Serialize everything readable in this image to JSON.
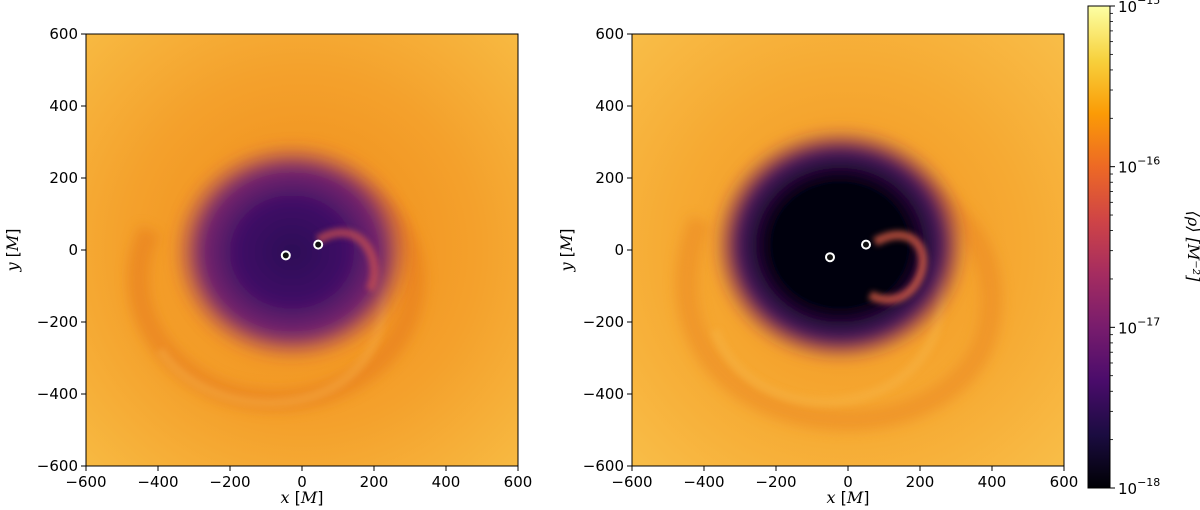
{
  "chart_data": [
    {
      "type": "heatmap",
      "xlabel": "x [M]",
      "ylabel": "y [M]",
      "xlim": [
        -600,
        600
      ],
      "ylim": [
        -600,
        600
      ],
      "xticks": [
        -600,
        -400,
        -200,
        0,
        200,
        400,
        600
      ],
      "yticks": [
        -600,
        -400,
        -200,
        0,
        200,
        400,
        600
      ],
      "xtick_labels": [
        "−600",
        "−400",
        "−200",
        "0",
        "200",
        "400",
        "600"
      ],
      "ytick_labels": [
        "−600",
        "−400",
        "−200",
        "0",
        "200",
        "400",
        "600"
      ],
      "markers": [
        {
          "x": -45,
          "y": -15
        },
        {
          "x": 45,
          "y": 15
        }
      ],
      "cavity_radius": 130,
      "grid": false
    },
    {
      "type": "heatmap",
      "xlabel": "x [M]",
      "ylabel": "y [M]",
      "xlim": [
        -600,
        600
      ],
      "ylim": [
        -600,
        600
      ],
      "xticks": [
        -600,
        -400,
        -200,
        0,
        200,
        400,
        600
      ],
      "yticks": [
        -600,
        -400,
        -200,
        0,
        200,
        400,
        600
      ],
      "xtick_labels": [
        "−600",
        "−400",
        "−200",
        "0",
        "200",
        "400",
        "600"
      ],
      "ytick_labels": [
        "−600",
        "−400",
        "−200",
        "0",
        "200",
        "400",
        "600"
      ],
      "markers": [
        {
          "x": -50,
          "y": -20
        },
        {
          "x": 50,
          "y": 15
        }
      ],
      "cavity_radius": 190,
      "grid": false
    }
  ],
  "colorbar": {
    "label": "⟨ρ⟩ [M⁻²]",
    "scale": "log",
    "range": [
      1e-18,
      1e-15
    ],
    "colormap": "inferno",
    "ticks": [
      {
        "value": 1e-18,
        "base": "10",
        "exp": "−18"
      },
      {
        "value": 1e-17,
        "base": "10",
        "exp": "−17"
      },
      {
        "value": 1e-16,
        "base": "10",
        "exp": "−16"
      },
      {
        "value": 1e-15,
        "base": "10",
        "exp": "−15"
      }
    ]
  },
  "colors": {
    "inferno": [
      "#000004",
      "#1b0c41",
      "#4a0c6b",
      "#781c6d",
      "#a52c60",
      "#cf4446",
      "#ed6925",
      "#fb9b06",
      "#f7d13d",
      "#fcffa4"
    ]
  }
}
